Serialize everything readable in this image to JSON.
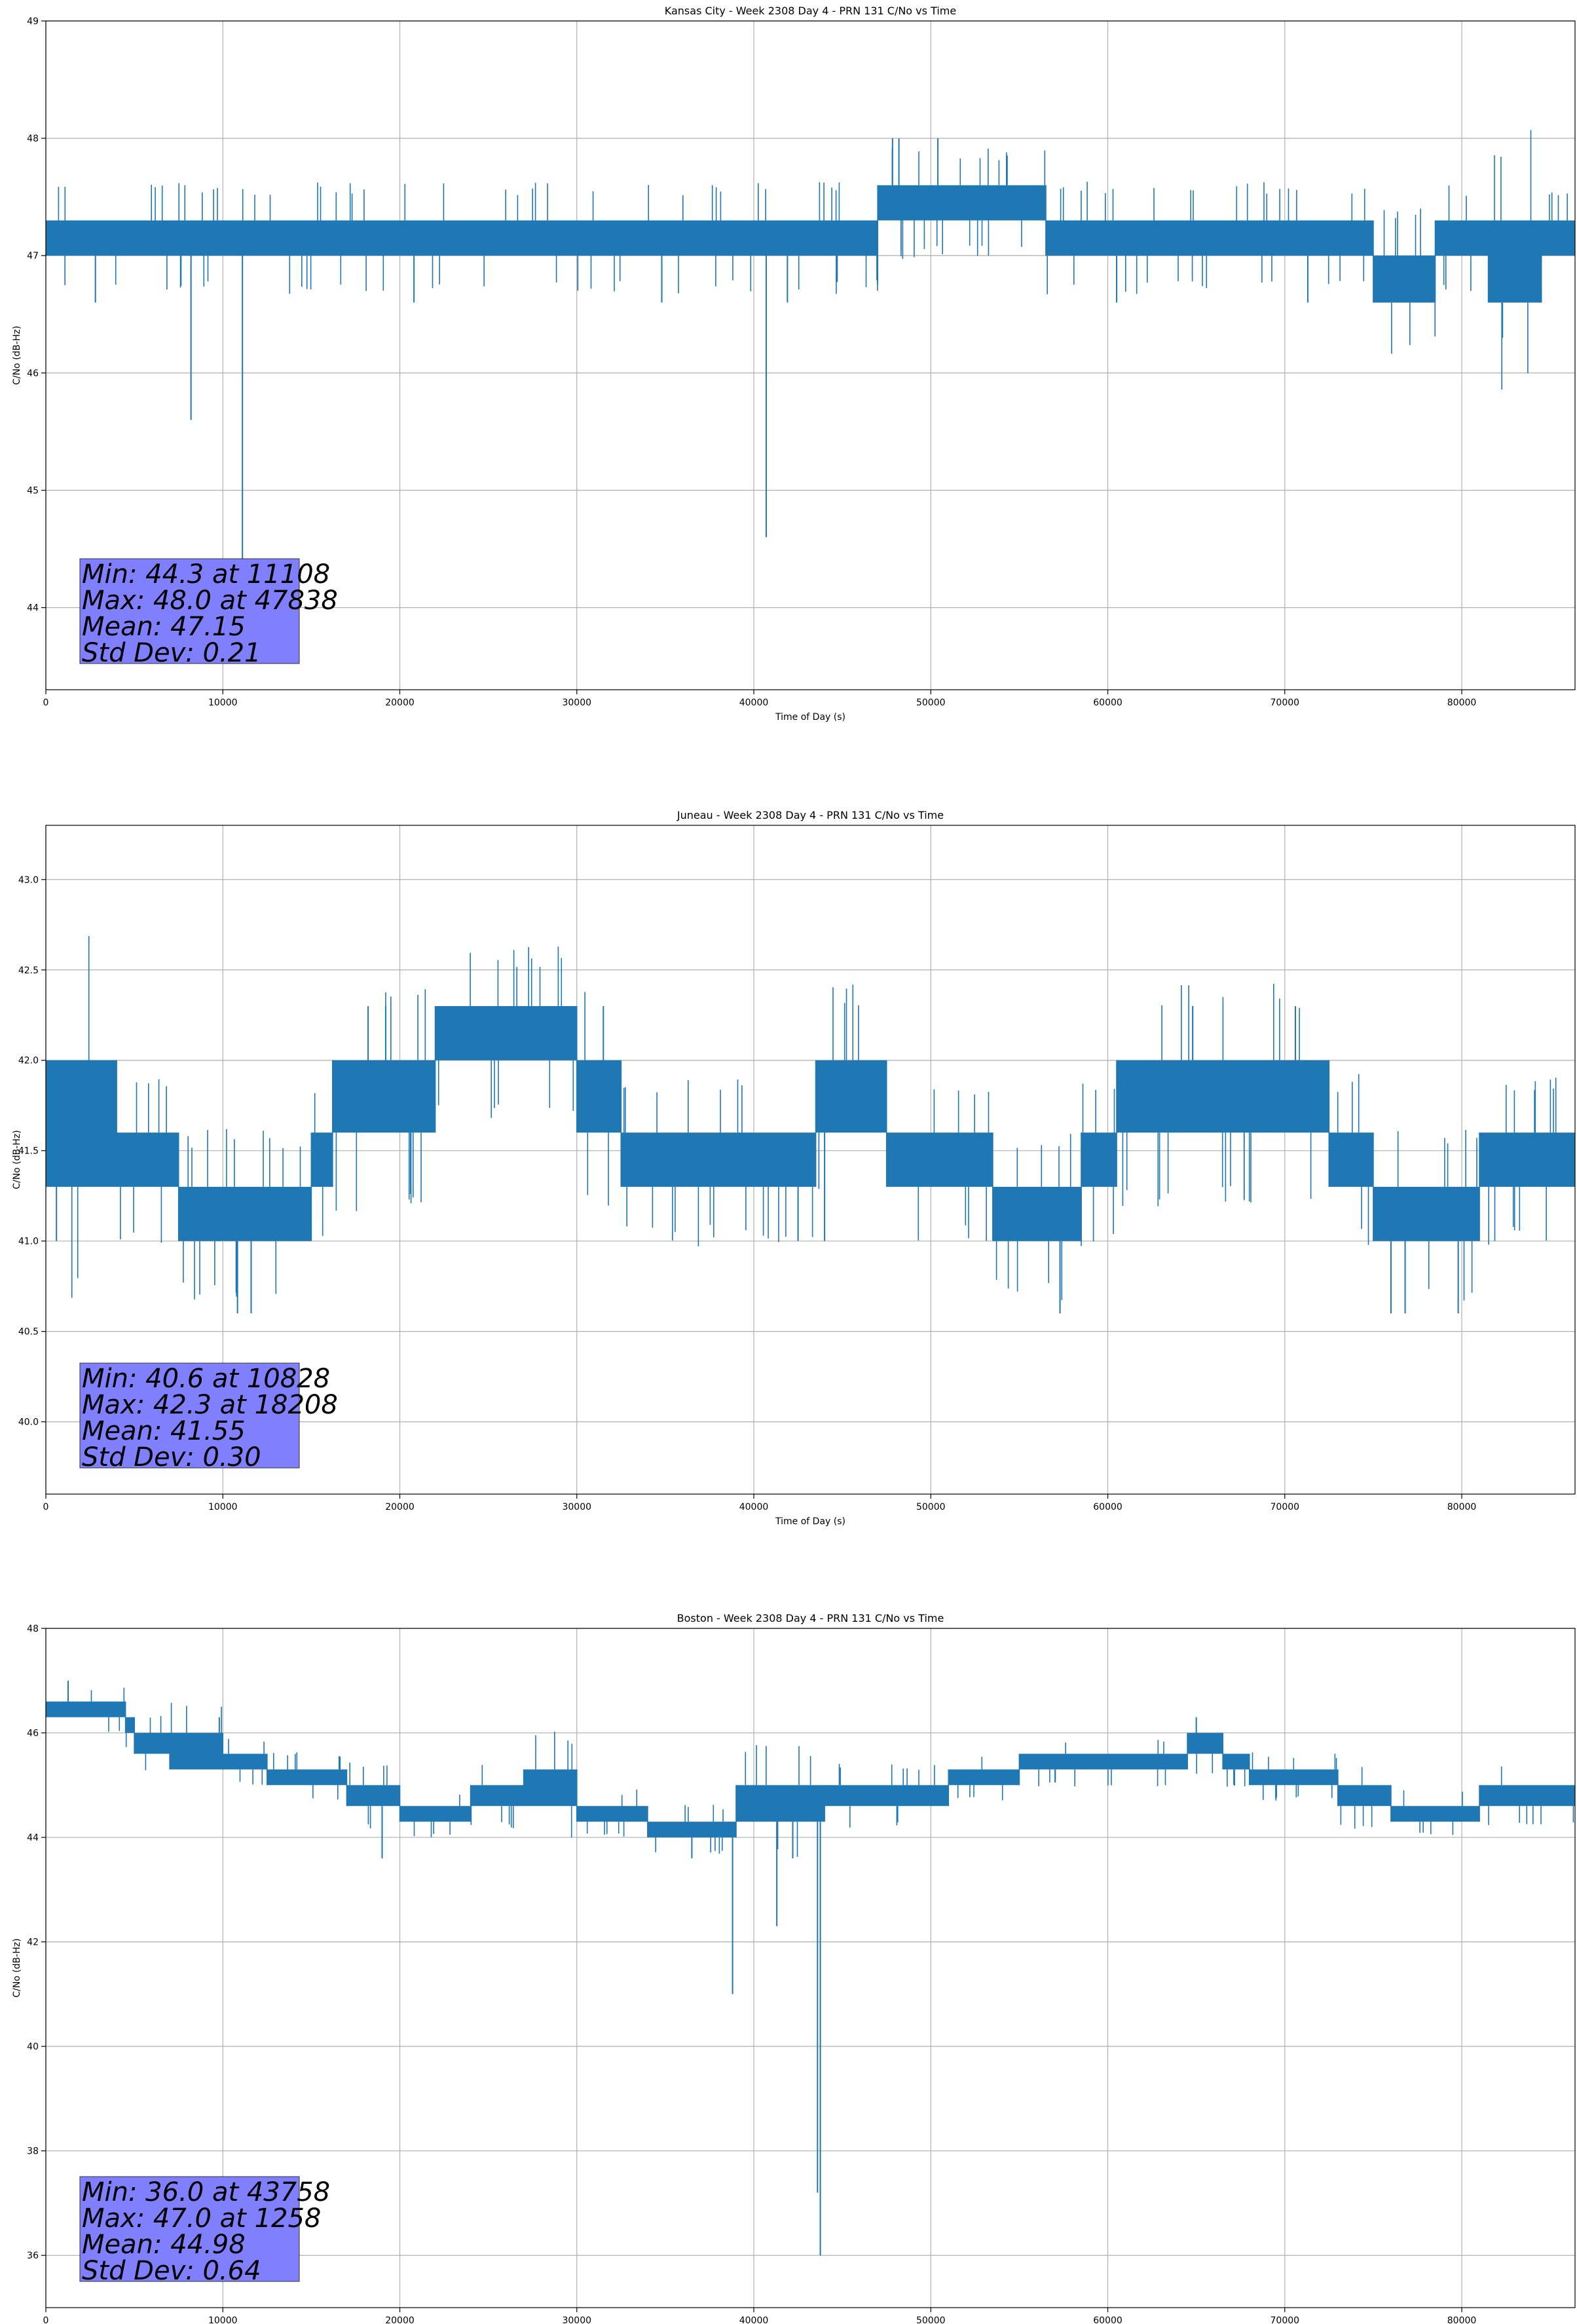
{
  "colors": {
    "series": "#1f77b4",
    "grid": "#b0b0b0",
    "stats_box_fill": "#8080ff",
    "stats_box_edge": "#333333"
  },
  "chart_data": [
    {
      "type": "line",
      "title": "Kansas City - Week 2308 Day 4 - PRN 131 C/No vs Time",
      "xlabel": "Time of Day (s)",
      "ylabel": "C/No (dB-Hz)",
      "xlim": [
        0,
        86400
      ],
      "ylim": [
        43.3,
        49.0
      ],
      "xticks": [
        0,
        10000,
        20000,
        30000,
        40000,
        50000,
        60000,
        70000,
        80000
      ],
      "xtick_labels": [
        "0",
        "10000",
        "20000",
        "30000",
        "40000",
        "50000",
        "60000",
        "70000",
        "80000"
      ],
      "yticks": [
        44,
        45,
        46,
        47,
        48,
        49
      ],
      "ytick_labels": [
        "44",
        "45",
        "46",
        "47",
        "48",
        "49"
      ],
      "grid": true,
      "stats": [
        "Min: 44.3 at 11108",
        "Max: 48.0 at 47838",
        "Mean: 47.15",
        "Std Dev: 0.21"
      ],
      "series": [
        {
          "color": "#1f77b4",
          "bands": [
            {
              "x": [
                0,
                11000
              ],
              "lo": 47.0,
              "hi": 47.3
            },
            {
              "x": [
                11000,
                47000
              ],
              "lo": 47.0,
              "hi": 47.3
            },
            {
              "x": [
                47000,
                56500
              ],
              "lo": 47.3,
              "hi": 47.6
            },
            {
              "x": [
                56500,
                75000
              ],
              "lo": 47.0,
              "hi": 47.3
            },
            {
              "x": [
                75000,
                78500
              ],
              "lo": 46.6,
              "hi": 47.0
            },
            {
              "x": [
                78500,
                81500
              ],
              "lo": 47.0,
              "hi": 47.3
            },
            {
              "x": [
                81500,
                84500
              ],
              "lo": 46.6,
              "hi": 47.3
            },
            {
              "x": [
                84500,
                86400
              ],
              "lo": 47.0,
              "hi": 47.3
            }
          ],
          "spikes": [
            {
              "x": 8200,
              "y": 45.6
            },
            {
              "x": 11108,
              "y": 44.3
            },
            {
              "x": 40700,
              "y": 44.6
            },
            {
              "x": 82300,
              "y": 46.3
            },
            {
              "x": 47838,
              "y": 48.0
            },
            {
              "x": 48200,
              "y": 48.0
            },
            {
              "x": 50400,
              "y": 48.0
            },
            {
              "x": 2800,
              "y": 46.6
            },
            {
              "x": 20800,
              "y": 46.6
            },
            {
              "x": 34800,
              "y": 46.6
            },
            {
              "x": 41900,
              "y": 46.6
            },
            {
              "x": 60500,
              "y": 46.6
            },
            {
              "x": 71300,
              "y": 46.6
            }
          ]
        }
      ]
    },
    {
      "type": "line",
      "title": "Juneau - Week 2308 Day 4 - PRN 131 C/No vs Time",
      "xlabel": "Time of Day (s)",
      "ylabel": "C/No (dB-Hz)",
      "xlim": [
        0,
        86400
      ],
      "ylim": [
        39.6,
        43.3
      ],
      "xticks": [
        0,
        10000,
        20000,
        30000,
        40000,
        50000,
        60000,
        70000,
        80000
      ],
      "xtick_labels": [
        "0",
        "10000",
        "20000",
        "30000",
        "40000",
        "50000",
        "60000",
        "70000",
        "80000"
      ],
      "yticks": [
        40.0,
        40.5,
        41.0,
        41.5,
        42.0,
        42.5,
        43.0
      ],
      "ytick_labels": [
        "40.0",
        "40.5",
        "41.0",
        "41.5",
        "42.0",
        "42.5",
        "43.0"
      ],
      "grid": true,
      "stats": [
        "Min: 40.6 at 10828",
        "Max: 42.3 at 18208",
        "Mean: 41.55",
        "Std Dev: 0.30"
      ],
      "series": [
        {
          "color": "#1f77b4",
          "bands": [
            {
              "x": [
                0,
                4000
              ],
              "lo": 41.3,
              "hi": 42.0
            },
            {
              "x": [
                4000,
                7500
              ],
              "lo": 41.3,
              "hi": 41.6
            },
            {
              "x": [
                7500,
                15000
              ],
              "lo": 41.0,
              "hi": 41.3
            },
            {
              "x": [
                15000,
                16200
              ],
              "lo": 41.3,
              "hi": 41.6
            },
            {
              "x": [
                16200,
                22000
              ],
              "lo": 41.6,
              "hi": 42.0
            },
            {
              "x": [
                22000,
                30000
              ],
              "lo": 42.0,
              "hi": 42.3
            },
            {
              "x": [
                30000,
                32500
              ],
              "lo": 41.6,
              "hi": 42.0
            },
            {
              "x": [
                32500,
                43500
              ],
              "lo": 41.3,
              "hi": 41.6
            },
            {
              "x": [
                43500,
                47500
              ],
              "lo": 41.6,
              "hi": 42.0
            },
            {
              "x": [
                47500,
                53500
              ],
              "lo": 41.3,
              "hi": 41.6
            },
            {
              "x": [
                53500,
                58500
              ],
              "lo": 41.0,
              "hi": 41.3
            },
            {
              "x": [
                58500,
                60500
              ],
              "lo": 41.3,
              "hi": 41.6
            },
            {
              "x": [
                60500,
                64000
              ],
              "lo": 41.6,
              "hi": 42.0
            },
            {
              "x": [
                64000,
                69500
              ],
              "lo": 41.6,
              "hi": 42.0
            },
            {
              "x": [
                69500,
                72500
              ],
              "lo": 41.6,
              "hi": 42.0
            },
            {
              "x": [
                72500,
                75000
              ],
              "lo": 41.3,
              "hi": 41.6
            },
            {
              "x": [
                75000,
                81000
              ],
              "lo": 41.0,
              "hi": 41.3
            },
            {
              "x": [
                81000,
                86400
              ],
              "lo": 41.3,
              "hi": 41.6
            }
          ],
          "spikes": [
            {
              "x": 10828,
              "y": 40.6
            },
            {
              "x": 11600,
              "y": 40.6
            },
            {
              "x": 57300,
              "y": 40.6
            },
            {
              "x": 76000,
              "y": 40.6
            },
            {
              "x": 76800,
              "y": 40.6
            },
            {
              "x": 79800,
              "y": 40.6
            },
            {
              "x": 18208,
              "y": 42.3
            },
            {
              "x": 19200,
              "y": 42.3
            },
            {
              "x": 31500,
              "y": 42.3
            },
            {
              "x": 64800,
              "y": 42.3
            },
            {
              "x": 70600,
              "y": 42.3
            },
            {
              "x": 42500,
              "y": 41.0
            },
            {
              "x": 44000,
              "y": 41.0
            },
            {
              "x": 600,
              "y": 41.0
            }
          ]
        }
      ]
    },
    {
      "type": "line",
      "title": "Boston - Week 2308 Day 4 - PRN 131 C/No vs Time",
      "xlabel": "Time of Day (s)",
      "ylabel": "C/No (dB-Hz)",
      "xlim": [
        0,
        86400
      ],
      "ylim": [
        35.0,
        48.0
      ],
      "xticks": [
        0,
        10000,
        20000,
        30000,
        40000,
        50000,
        60000,
        70000,
        80000
      ],
      "xtick_labels": [
        "0",
        "10000",
        "20000",
        "30000",
        "40000",
        "50000",
        "60000",
        "70000",
        "80000"
      ],
      "yticks": [
        36,
        38,
        40,
        42,
        44,
        46,
        48
      ],
      "ytick_labels": [
        "36",
        "38",
        "40",
        "42",
        "44",
        "46",
        "48"
      ],
      "grid": true,
      "stats": [
        "Min: 36.0 at 43758",
        "Max: 47.0 at 1258",
        "Mean: 44.98",
        "Std Dev: 0.64"
      ],
      "series": [
        {
          "color": "#1f77b4",
          "bands": [
            {
              "x": [
                0,
                4500
              ],
              "lo": 46.3,
              "hi": 46.6
            },
            {
              "x": [
                4500,
                5000
              ],
              "lo": 46.0,
              "hi": 46.3
            },
            {
              "x": [
                5000,
                7000
              ],
              "lo": 45.6,
              "hi": 46.0
            },
            {
              "x": [
                7000,
                10000
              ],
              "lo": 45.3,
              "hi": 46.0
            },
            {
              "x": [
                10000,
                12500
              ],
              "lo": 45.3,
              "hi": 45.6
            },
            {
              "x": [
                12500,
                17000
              ],
              "lo": 45.0,
              "hi": 45.3
            },
            {
              "x": [
                17000,
                20000
              ],
              "lo": 44.6,
              "hi": 45.0
            },
            {
              "x": [
                20000,
                24000
              ],
              "lo": 44.3,
              "hi": 44.6
            },
            {
              "x": [
                24000,
                27000
              ],
              "lo": 44.6,
              "hi": 45.0
            },
            {
              "x": [
                27000,
                30000
              ],
              "lo": 44.6,
              "hi": 45.3
            },
            {
              "x": [
                30000,
                34000
              ],
              "lo": 44.3,
              "hi": 44.6
            },
            {
              "x": [
                34000,
                39000
              ],
              "lo": 44.0,
              "hi": 44.3
            },
            {
              "x": [
                39000,
                44000
              ],
              "lo": 44.3,
              "hi": 45.0
            },
            {
              "x": [
                44000,
                51000
              ],
              "lo": 44.6,
              "hi": 45.0
            },
            {
              "x": [
                51000,
                55000
              ],
              "lo": 45.0,
              "hi": 45.3
            },
            {
              "x": [
                55000,
                59000
              ],
              "lo": 45.3,
              "hi": 45.6
            },
            {
              "x": [
                59000,
                64500
              ],
              "lo": 45.3,
              "hi": 45.6
            },
            {
              "x": [
                64500,
                66500
              ],
              "lo": 45.6,
              "hi": 46.0
            },
            {
              "x": [
                66500,
                68000
              ],
              "lo": 45.3,
              "hi": 45.6
            },
            {
              "x": [
                68000,
                73000
              ],
              "lo": 45.0,
              "hi": 45.3
            },
            {
              "x": [
                73000,
                76000
              ],
              "lo": 44.6,
              "hi": 45.0
            },
            {
              "x": [
                76000,
                81000
              ],
              "lo": 44.3,
              "hi": 44.6
            },
            {
              "x": [
                81000,
                86400
              ],
              "lo": 44.6,
              "hi": 45.0
            }
          ],
          "spikes": [
            {
              "x": 1258,
              "y": 47.0
            },
            {
              "x": 43758,
              "y": 36.0
            },
            {
              "x": 43600,
              "y": 37.2
            },
            {
              "x": 38800,
              "y": 41.0
            },
            {
              "x": 41300,
              "y": 42.3
            },
            {
              "x": 19000,
              "y": 43.6
            },
            {
              "x": 36500,
              "y": 43.6
            },
            {
              "x": 42200,
              "y": 43.6
            },
            {
              "x": 65000,
              "y": 46.3
            },
            {
              "x": 9800,
              "y": 46.3
            }
          ]
        }
      ]
    }
  ]
}
